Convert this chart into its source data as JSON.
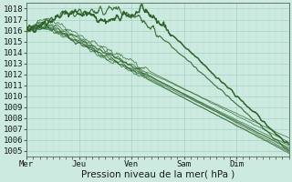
{
  "background_color": "#cceae0",
  "plot_bg_color": "#cceae0",
  "grid_major_color": "#99ccbb",
  "grid_minor_color": "#b8ddd0",
  "line_color": "#2d6228",
  "ylim": [
    1004.5,
    1018.5
  ],
  "yticks": [
    1005,
    1006,
    1007,
    1008,
    1009,
    1010,
    1011,
    1012,
    1013,
    1014,
    1015,
    1016,
    1017,
    1018
  ],
  "xlabel": "Pression niveau de la mer( hPa )",
  "day_labels": [
    "Mer",
    "Jeu",
    "Ven",
    "Sam",
    "Dim"
  ],
  "day_positions": [
    0,
    24,
    48,
    72,
    96
  ],
  "xlim": [
    0,
    120
  ],
  "label_fontsize": 7.5,
  "tick_fontsize": 6.5
}
